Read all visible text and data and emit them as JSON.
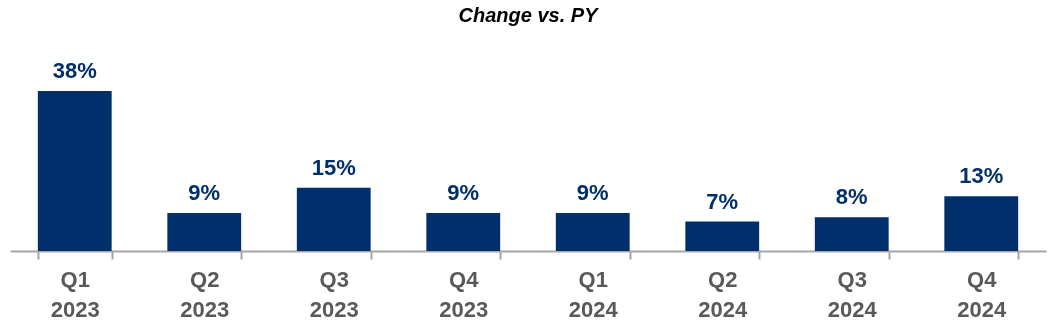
{
  "chart_data": {
    "type": "bar",
    "title": "Change vs. PY",
    "categories": [
      "Q1 2023",
      "Q2 2023",
      "Q3 2023",
      "Q4 2023",
      "Q1 2024",
      "Q2 2024",
      "Q3 2024",
      "Q4 2024"
    ],
    "values": [
      38,
      9,
      15,
      9,
      9,
      7,
      8,
      13
    ],
    "value_labels": [
      "38%",
      "9%",
      "15%",
      "9%",
      "9%",
      "7%",
      "8%",
      "13%"
    ],
    "color": "#002f6c",
    "grid": false
  }
}
